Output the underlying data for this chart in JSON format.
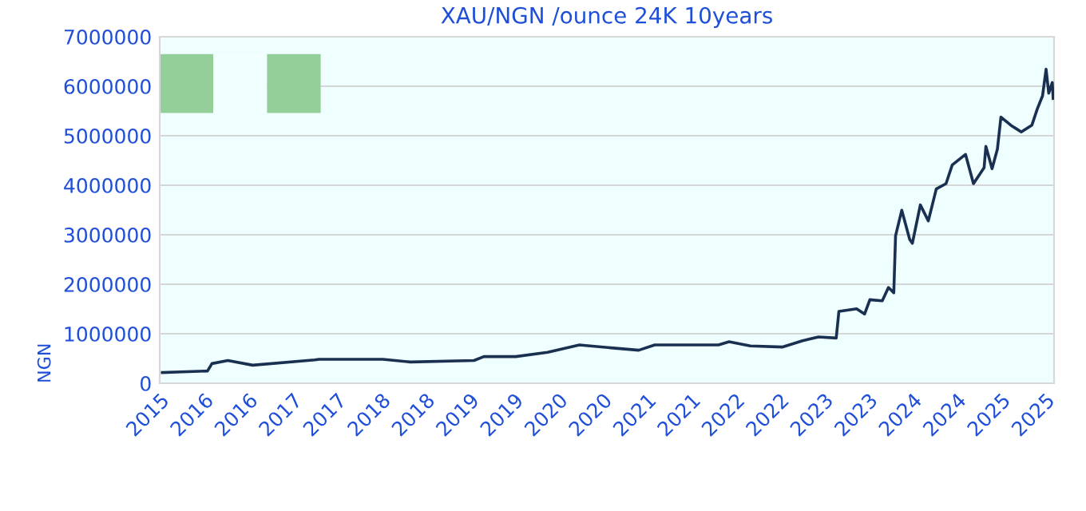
{
  "chart_data": {
    "type": "line",
    "title": "XAU/NGN /ounce 24K 10years",
    "ylabel": "NGN",
    "x": [
      2015.03,
      2015.54,
      2015.59,
      2015.77,
      2016.05,
      2016.75,
      2016.8,
      2017.52,
      2017.83,
      2018.55,
      2018.66,
      2019.02,
      2019.38,
      2019.74,
      2019.86,
      2020.41,
      2020.59,
      2021.31,
      2021.43,
      2021.67,
      2022.03,
      2022.26,
      2022.44,
      2022.64,
      2022.67,
      2022.87,
      2022.96,
      2023.02,
      2023.16,
      2023.23,
      2023.29,
      2023.31,
      2023.38,
      2023.47,
      2023.5,
      2023.59,
      2023.68,
      2023.77,
      2023.88,
      2023.95,
      2024.1,
      2024.19,
      2024.31,
      2024.33,
      2024.4,
      2024.46,
      2024.5,
      2024.61,
      2024.73,
      2024.85,
      2024.91,
      2024.97,
      2025.01,
      2025.04,
      2025.08,
      2025.09
    ],
    "series": [
      {
        "color": "#1a3050",
        "values": [
          216000,
          248000,
          397000,
          460000,
          365000,
          473000,
          484000,
          484000,
          430000,
          460000,
          538000,
          538000,
          624000,
          774000,
          753000,
          667000,
          774000,
          774000,
          839000,
          753000,
          731000,
          860000,
          935000,
          914000,
          1452000,
          1505000,
          1398000,
          1688000,
          1666000,
          1935000,
          1828000,
          2978000,
          3495000,
          2903000,
          2828000,
          3602000,
          3280000,
          3925000,
          4032000,
          4409000,
          4624000,
          4032000,
          4355000,
          4785000,
          4333000,
          4731000,
          5376000,
          5215000,
          5075000,
          5215000,
          5538000,
          5806000,
          6344000,
          5860000,
          6075000,
          5753000
        ]
      }
    ],
    "xlim": [
      2015,
      2025.1
    ],
    "ylim": [
      0,
      7000000
    ],
    "xticks": [
      {
        "value": 2015,
        "label": "2015"
      },
      {
        "value": 2015.5,
        "label": "2016"
      },
      {
        "value": 2016,
        "label": "2016"
      },
      {
        "value": 2016.5,
        "label": "2017"
      },
      {
        "value": 2017,
        "label": "2017"
      },
      {
        "value": 2017.5,
        "label": "2018"
      },
      {
        "value": 2018,
        "label": "2018"
      },
      {
        "value": 2018.5,
        "label": "2019"
      },
      {
        "value": 2019,
        "label": "2019"
      },
      {
        "value": 2019.5,
        "label": "2020"
      },
      {
        "value": 2020,
        "label": "2020"
      },
      {
        "value": 2020.5,
        "label": "2021"
      },
      {
        "value": 2021,
        "label": "2021"
      },
      {
        "value": 2021.5,
        "label": "2022"
      },
      {
        "value": 2022,
        "label": "2022"
      },
      {
        "value": 2022.5,
        "label": "2023"
      },
      {
        "value": 2023,
        "label": "2023"
      },
      {
        "value": 2023.5,
        "label": "2024"
      },
      {
        "value": 2024,
        "label": "2024"
      },
      {
        "value": 2024.5,
        "label": "2025"
      },
      {
        "value": 2025,
        "label": "2025"
      }
    ],
    "yticks": [
      0,
      1000000,
      2000000,
      3000000,
      4000000,
      5000000,
      6000000,
      7000000
    ],
    "grid": "y",
    "marker": "none",
    "line_style": "solid"
  }
}
